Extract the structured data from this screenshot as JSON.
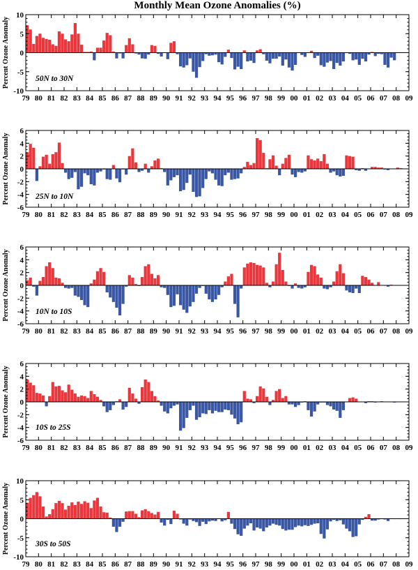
{
  "title": "Monthly Mean Ozone Anomalies (%)",
  "colors": {
    "positive": "#e8383d",
    "negative": "#3a57a4",
    "axis": "#000000"
  },
  "chart_data": [
    {
      "type": "bar",
      "region": "50N to 30N",
      "ylabel": "Percent Ozone Anomaly",
      "ylim": [
        -10,
        10
      ],
      "yticks": [
        -10,
        -5,
        0,
        5,
        10
      ],
      "xlim": [
        1979,
        2009
      ],
      "xticks": [
        "79",
        "80",
        "81",
        "82",
        "83",
        "84",
        "85",
        "86",
        "87",
        "88",
        "89",
        "90",
        "91",
        "92",
        "93",
        "94",
        "95",
        "96",
        "97",
        "98",
        "99",
        "00",
        "01",
        "02",
        "03",
        "04",
        "05",
        "06",
        "07",
        "08",
        "09"
      ],
      "x_start": 1979,
      "x_step": 0.25,
      "values": [
        7.2,
        6.1,
        2.3,
        4.4,
        5.0,
        3.9,
        3.6,
        3.4,
        2.2,
        1.8,
        5.6,
        5.0,
        3.5,
        3.0,
        4.8,
        7.8,
        5.0,
        2.1,
        0.2,
        0.2,
        0.3,
        -2.0,
        1.3,
        1.3,
        3.2,
        5.2,
        4.6,
        0.3,
        -1.5,
        -0.2,
        -1.5,
        2.0,
        3.8,
        2.2,
        -0.2,
        -0.5,
        -1.5,
        -1.6,
        -0.5,
        2.0,
        1.8,
        -0.3,
        -1.0,
        0.0,
        -1.7,
        2.6,
        3.0,
        -0.4,
        -3.6,
        -3.9,
        -3.3,
        -1.5,
        -5.0,
        -6.6,
        -3.8,
        -2.2,
        -0.4,
        -0.8,
        -0.7,
        -0.5,
        -2.5,
        -3.1,
        -1.1,
        0.8,
        -1.4,
        -4.4,
        -3.7,
        -4.3,
        0.6,
        -2.3,
        -2.1,
        -2.7,
        0.6,
        0.9,
        -0.4,
        -2.1,
        -2.8,
        -1.6,
        -1.6,
        -1.0,
        -3.4,
        -1.8,
        -3.9,
        -4.7,
        -3.2,
        -0.1,
        -0.6,
        -1.1,
        0.1,
        0.5,
        -1.4,
        -0.8,
        -3.3,
        -3.7,
        -2.6,
        -2.2,
        -4.3,
        -2.7,
        -3.4,
        -2.3,
        0.0,
        -0.3,
        -2.0,
        -1.8,
        -3.2,
        -1.6,
        -2.3,
        -0.5,
        0.2,
        -0.9,
        -0.3,
        -0.4,
        -3.2,
        -3.9,
        -1.3,
        -2.0
      ]
    },
    {
      "type": "bar",
      "region": "25N to 10N",
      "ylabel": "Percent Ozone Anomaly",
      "ylim": [
        -6,
        6
      ],
      "yticks": [
        -6,
        -4,
        -2,
        0,
        2,
        4,
        6
      ],
      "xlim": [
        1979,
        2009
      ],
      "xticks": [
        "79",
        "80",
        "81",
        "82",
        "83",
        "84",
        "85",
        "86",
        "87",
        "88",
        "89",
        "90",
        "91",
        "92",
        "93",
        "94",
        "95",
        "96",
        "97",
        "98",
        "99",
        "00",
        "01",
        "02",
        "03",
        "04",
        "05",
        "06",
        "07",
        "08",
        "09"
      ],
      "x_start": 1979,
      "x_step": 0.25,
      "values": [
        2.6,
        3.9,
        3.3,
        -1.9,
        0.4,
        1.9,
        2.2,
        0.8,
        2.3,
        2.6,
        4.1,
        0.9,
        -0.6,
        -1.6,
        -1.4,
        -0.5,
        -3.2,
        -2.8,
        -0.7,
        -1.0,
        -2.4,
        -2.6,
        -0.6,
        -0.4,
        -0.1,
        -1.6,
        -1.7,
        0.6,
        -1.5,
        -2.1,
        -0.1,
        -0.9,
        2.0,
        3.2,
        1.0,
        -0.5,
        -0.3,
        0.8,
        -0.6,
        0.4,
        1.3,
        1.6,
        0.1,
        -0.5,
        -2.6,
        -1.8,
        -1.3,
        -1.0,
        -3.5,
        -3.3,
        -2.2,
        -0.9,
        -3.6,
        -4.4,
        -4.3,
        -3.0,
        -1.6,
        -0.4,
        -0.7,
        -1.7,
        -2.6,
        -2.7,
        -1.0,
        -0.6,
        -1.7,
        -1.6,
        -1.5,
        -0.7,
        0.3,
        1.1,
        0.6,
        0.9,
        4.8,
        4.5,
        2.5,
        0.1,
        1.5,
        2.1,
        0.5,
        -1.0,
        0.8,
        1.7,
        2.2,
        -0.9,
        -1.3,
        -0.5,
        -0.6,
        -0.4,
        2.1,
        1.5,
        1.3,
        1.6,
        1.2,
        2.3,
        0.8,
        -0.6,
        -0.4,
        -1.0,
        -1.2,
        -1.1,
        2.1,
        2.0,
        1.9,
        -0.2,
        -0.3,
        0.1,
        -0.3,
        0.0,
        0.3,
        0.3,
        0.2,
        0.2,
        -0.1,
        -0.2,
        0.0,
        0.0,
        0.2,
        0.1,
        0.0,
        0.0
      ]
    },
    {
      "type": "bar",
      "region": "10N to 10S",
      "ylabel": "Percent Ozone Anomaly",
      "ylim": [
        -6,
        6
      ],
      "yticks": [
        -6,
        -4,
        -2,
        0,
        2,
        4,
        6
      ],
      "xlim": [
        1979,
        2009
      ],
      "xticks": [
        "79",
        "80",
        "81",
        "82",
        "83",
        "84",
        "85",
        "86",
        "87",
        "88",
        "89",
        "90",
        "91",
        "92",
        "93",
        "94",
        "95",
        "96",
        "97",
        "98",
        "99",
        "00",
        "01",
        "02",
        "03",
        "04",
        "05",
        "06",
        "07",
        "08",
        "09"
      ],
      "x_start": 1979,
      "x_step": 0.25,
      "values": [
        0.8,
        1.2,
        -0.2,
        -1.6,
        0.7,
        1.3,
        3.0,
        3.6,
        2.7,
        1.2,
        1.1,
        0.4,
        -0.4,
        -0.5,
        -0.4,
        -1.6,
        -1.8,
        -2.3,
        -3.1,
        -3.4,
        0.3,
        0.9,
        2.2,
        2.7,
        2.1,
        -1.1,
        -1.9,
        -2.6,
        -3.5,
        -4.7,
        -2.9,
        -0.2,
        1.6,
        1.2,
        0.2,
        -0.1,
        1.3,
        3.0,
        3.3,
        1.8,
        1.1,
        1.6,
        -0.3,
        -0.4,
        -1.5,
        -3.4,
        -3.2,
        -1.4,
        -3.1,
        -3.8,
        -4.3,
        -3.3,
        -2.6,
        -1.3,
        -0.4,
        -0.1,
        -1.3,
        -2.2,
        -2.6,
        -2.2,
        -1.5,
        -0.3,
        0.6,
        1.4,
        1.8,
        -2.9,
        -5.0,
        -0.5,
        2.8,
        3.4,
        3.6,
        3.5,
        3.2,
        3.1,
        2.8,
        0.4,
        -0.3,
        0.6,
        3.3,
        5.1,
        2.4,
        0.6,
        -0.1,
        -0.5,
        0.3,
        -0.4,
        -0.5,
        -0.3,
        2.1,
        3.2,
        3.0,
        1.7,
        1.2,
        -0.5,
        -0.6,
        -0.3,
        0.6,
        2.2,
        3.3,
        1.9,
        -0.8,
        -1.1,
        -1.2,
        -0.5,
        -1.2,
        1.5,
        1.3,
        0.9,
        0.4,
        0.0,
        0.5,
        0.0,
        0.0,
        -0.2,
        0.1,
        0.0,
        0.0,
        0.0,
        0.0,
        0.0
      ]
    },
    {
      "type": "bar",
      "region": "10S to 25S",
      "ylabel": "Percent Ozone Anomaly",
      "ylim": [
        -6,
        6
      ],
      "yticks": [
        -6,
        -4,
        -2,
        0,
        2,
        4,
        6
      ],
      "xlim": [
        1979,
        2009
      ],
      "xticks": [
        "79",
        "80",
        "81",
        "82",
        "83",
        "84",
        "85",
        "86",
        "87",
        "88",
        "89",
        "90",
        "91",
        "92",
        "93",
        "94",
        "95",
        "96",
        "97",
        "98",
        "99",
        "00",
        "01",
        "02",
        "03",
        "04",
        "05",
        "06",
        "07",
        "08",
        "09"
      ],
      "x_start": 1979,
      "x_step": 0.25,
      "values": [
        3.5,
        3.0,
        2.6,
        1.4,
        1.3,
        1.0,
        -0.7,
        0.9,
        3.1,
        2.4,
        2.5,
        1.8,
        1.5,
        2.7,
        1.9,
        1.3,
        0.8,
        1.0,
        0.9,
        0.6,
        1.7,
        1.2,
        0.8,
        0.3,
        -0.7,
        -1.6,
        -1.3,
        -0.5,
        0.1,
        0.4,
        -1.2,
        -0.8,
        2.2,
        1.3,
        0.5,
        -0.3,
        2.3,
        3.5,
        3.1,
        1.7,
        0.9,
        0.2,
        -0.6,
        -1.5,
        -1.8,
        -1.0,
        -0.6,
        -0.4,
        -4.5,
        -4.1,
        -2.5,
        -1.3,
        -0.6,
        -2.8,
        -2.4,
        -1.8,
        -1.9,
        -1.3,
        -1.8,
        -1.4,
        -1.6,
        -1.6,
        -1.2,
        -1.3,
        -2.0,
        -2.6,
        -3.5,
        -3.2,
        1.7,
        0.5,
        0.4,
        -0.2,
        0.9,
        2.4,
        2.1,
        0.8,
        -0.5,
        0.3,
        1.7,
        2.0,
        0.6,
        0.9,
        -0.4,
        -0.4,
        -0.8,
        -0.5,
        -0.1,
        0.1,
        -1.3,
        -2.3,
        -1.5,
        -0.4,
        -0.1,
        -0.1,
        -0.5,
        -0.7,
        -1.2,
        -1.4,
        -2.5,
        -1.3,
        0.0,
        0.6,
        0.7,
        0.5,
        0.0,
        0.0,
        -0.2,
        0.1,
        0.1,
        -0.1,
        0.0,
        0.1,
        0.0,
        0.0,
        0.0,
        -0.1,
        0.0,
        0.0,
        0.0,
        0.0
      ]
    },
    {
      "type": "bar",
      "region": "30S to 50S",
      "ylabel": "Percent Ozone Anomaly",
      "ylim": [
        -10,
        10
      ],
      "yticks": [
        -10,
        -5,
        0,
        5,
        10
      ],
      "xlim": [
        1979,
        2009
      ],
      "xticks": [
        "79",
        "80",
        "81",
        "82",
        "83",
        "84",
        "85",
        "86",
        "87",
        "88",
        "89",
        "90",
        "91",
        "92",
        "93",
        "94",
        "95",
        "96",
        "97",
        "98",
        "99",
        "00",
        "01",
        "02",
        "03",
        "04",
        "05",
        "06",
        "07",
        "08",
        "09"
      ],
      "x_start": 1979,
      "x_step": 0.25,
      "values": [
        4.2,
        5.5,
        6.2,
        7.0,
        5.9,
        3.2,
        0.6,
        1.2,
        2.5,
        4.1,
        4.7,
        4.1,
        2.4,
        3.4,
        4.3,
        3.6,
        4.5,
        3.9,
        4.6,
        4.2,
        2.8,
        4.8,
        5.5,
        3.2,
        1.7,
        1.6,
        0.3,
        -2.1,
        -3.5,
        -2.1,
        -0.8,
        1.9,
        2.0,
        2.0,
        1.3,
        0.4,
        2.2,
        2.5,
        2.0,
        1.5,
        1.1,
        1.8,
        -1.0,
        -1.8,
        -0.3,
        -1.4,
        2.1,
        1.3,
        -0.2,
        -1.3,
        -1.8,
        -0.2,
        -0.6,
        -0.9,
        -1.9,
        -0.8,
        -1.4,
        -0.7,
        -0.5,
        -0.6,
        0.0,
        -0.7,
        -0.4,
        1.8,
        -1.3,
        -2.7,
        -4.1,
        -4.5,
        -2.6,
        -1.8,
        -1.2,
        -3.1,
        -2.3,
        -2.6,
        -3.3,
        -2.3,
        -1.8,
        -1.3,
        -1.6,
        -1.8,
        -2.7,
        -3.1,
        -2.9,
        -2.9,
        -2.2,
        -1.8,
        -2.0,
        -1.7,
        -1.9,
        -1.6,
        -1.3,
        -1.2,
        -4.0,
        -5.2,
        -2.8,
        -0.7,
        -0.3,
        -0.6,
        -0.4,
        -1.5,
        -2.6,
        -3.3,
        -4.8,
        -4.6,
        -1.5,
        -0.3,
        0.5,
        1.2,
        -0.5,
        -0.5,
        -0.2,
        0.0,
        -0.2,
        -0.6,
        0.1,
        -0.1,
        0.0,
        -0.1,
        0.0,
        0.0
      ]
    }
  ]
}
